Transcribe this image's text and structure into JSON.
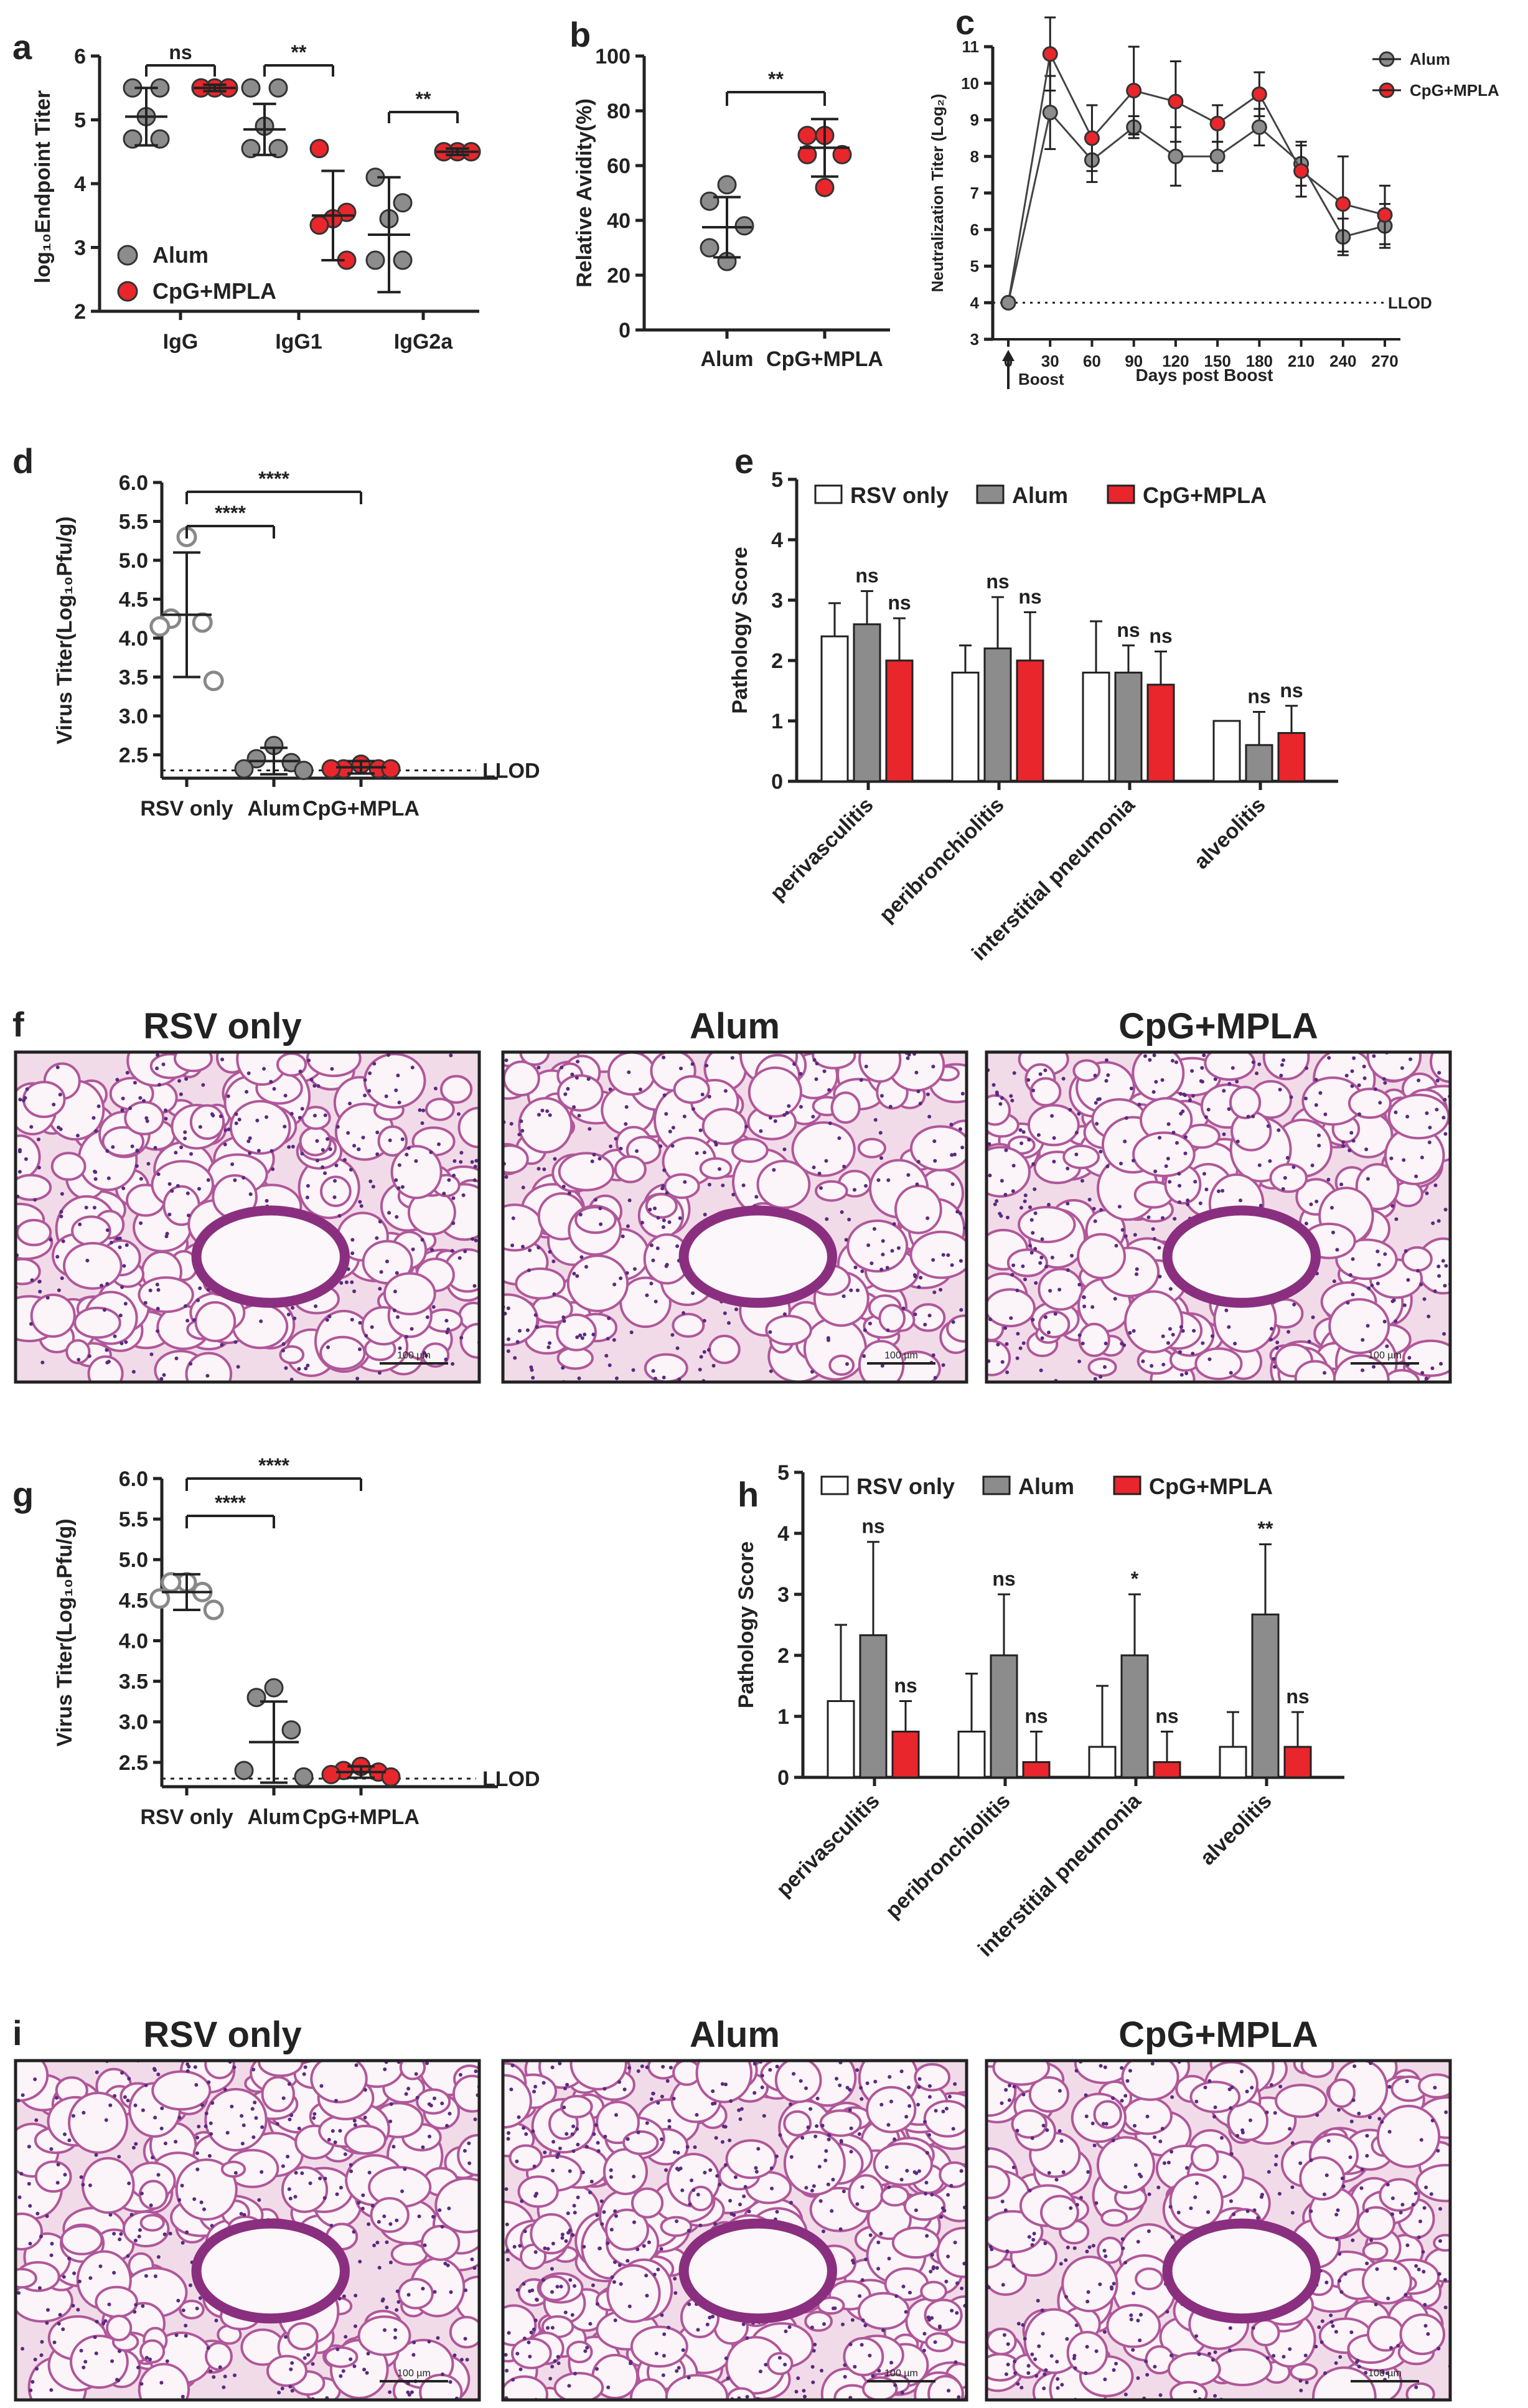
{
  "panel_letters": {
    "a": "a",
    "b": "b",
    "c": "c",
    "d": "d",
    "e": "e",
    "f": "f",
    "g": "g",
    "h": "h",
    "i": "i"
  },
  "colors": {
    "alum": "#8c8c8c",
    "cpg": "#e8262c",
    "rsv": "#ffffff",
    "black": "#222222"
  },
  "chart_data": [
    {
      "id": "a",
      "type": "scatter",
      "ylabel": "log10Endpoint Titer",
      "ylim": [
        2,
        6
      ],
      "yticks": [
        "2",
        "3",
        "4",
        "5",
        "6"
      ],
      "categories": [
        "IgG",
        "IgG1",
        "IgG2a"
      ],
      "series": [
        {
          "name": "Alum",
          "color": "#8c8c8c",
          "points": [
            [
              5.5,
              5.5,
              5.05,
              4.7,
              4.7
            ],
            [
              5.5,
              5.5,
              4.9,
              4.55,
              4.55
            ],
            [
              4.1,
              3.7,
              3.45,
              2.8,
              2.8
            ]
          ],
          "mean": [
            5.05,
            4.85,
            3.2
          ],
          "sd": [
            0.45,
            0.4,
            0.9
          ]
        },
        {
          "name": "CpG+MPLA",
          "color": "#e8262c",
          "points": [
            [
              5.5,
              5.5,
              5.5,
              5.5,
              5.5
            ],
            [
              4.55,
              3.55,
              3.45,
              3.35,
              2.8
            ],
            [
              4.5,
              4.5,
              4.5,
              4.5,
              4.5
            ]
          ],
          "mean": [
            5.5,
            3.5,
            4.5
          ],
          "sd": [
            0.05,
            0.7,
            0.05
          ]
        }
      ],
      "sig": [
        "ns",
        "**",
        "**"
      ],
      "legend": [
        "Alum",
        "CpG+MPLA"
      ]
    },
    {
      "id": "b",
      "type": "scatter",
      "ylabel": "Relative Avidity(%)",
      "ylim": [
        0,
        100
      ],
      "yticks": [
        "0",
        "20",
        "40",
        "60",
        "80",
        "100"
      ],
      "categories": [
        "Alum",
        "CpG+MPLA"
      ],
      "series": [
        {
          "name": "Alum",
          "color": "#8c8c8c",
          "points": [
            53,
            47,
            38,
            30,
            25
          ],
          "mean": 37.5,
          "sd": 11
        },
        {
          "name": "CpG+MPLA",
          "color": "#e8262c",
          "points": [
            71,
            71,
            64,
            64,
            52
          ],
          "mean": 66.5,
          "sd": 10.5
        }
      ],
      "sig": "**"
    },
    {
      "id": "c",
      "type": "line",
      "ylabel": "Neutralization Titer (Log2)",
      "xlabel": "Days post Boost",
      "x": [
        0,
        30,
        60,
        90,
        120,
        150,
        180,
        210,
        240,
        270
      ],
      "ylim": [
        3,
        11
      ],
      "yticks": [
        "3",
        "4",
        "5",
        "6",
        "7",
        "8",
        "9",
        "10",
        "11"
      ],
      "series": [
        {
          "name": "Alum",
          "color": "#8c8c8c",
          "values": [
            4,
            9.2,
            7.9,
            8.8,
            8.0,
            8.0,
            8.8,
            7.8,
            5.8,
            6.1
          ],
          "err": [
            0,
            1.0,
            0.6,
            0.3,
            0.8,
            0.4,
            0.5,
            0.6,
            0.5,
            0.6
          ]
        },
        {
          "name": "CpG+MPLA",
          "color": "#e8262c",
          "values": [
            4,
            10.8,
            8.5,
            9.8,
            9.5,
            8.9,
            9.7,
            7.6,
            6.7,
            6.4
          ],
          "err": [
            0,
            1.0,
            0.9,
            1.2,
            1.1,
            0.5,
            0.6,
            0.7,
            1.3,
            0.8
          ]
        }
      ],
      "lod_label": "LLOD",
      "lod": 4,
      "boost_label": "Boost",
      "legend": [
        "Alum",
        "CpG+MPLA"
      ]
    },
    {
      "id": "d",
      "type": "scatter",
      "ylabel": "Virus Titer(Log10Pfu/g)",
      "ylim": [
        2.2,
        6.0
      ],
      "yticks": [
        "2.5",
        "3.0",
        "3.5",
        "4.0",
        "4.5",
        "5.0",
        "5.5",
        "6.0"
      ],
      "categories": [
        "RSV only",
        "Alum",
        "CpG+MPLA"
      ],
      "series": [
        {
          "name": "RSV only",
          "color": "#ffffff",
          "points": [
            5.3,
            4.25,
            4.2,
            4.15,
            3.45
          ],
          "mean": 4.3,
          "sd": 0.8
        },
        {
          "name": "Alum",
          "color": "#8c8c8c",
          "points": [
            2.62,
            2.45,
            2.4,
            2.32,
            2.3
          ],
          "mean": 2.42,
          "sd": 0.17
        },
        {
          "name": "CpG+MPLA",
          "color": "#e8262c",
          "points": [
            2.38,
            2.32,
            2.32,
            2.32,
            2.32
          ],
          "mean": 2.34,
          "sd": 0.08
        }
      ],
      "lod": 2.3,
      "lod_label": "LLOD",
      "sig": [
        "****",
        "****"
      ]
    },
    {
      "id": "e",
      "type": "bar",
      "ylabel": "Pathology Score",
      "ylim": [
        0,
        5
      ],
      "yticks": [
        "0",
        "1",
        "2",
        "3",
        "4",
        "5"
      ],
      "categories": [
        "perivasculitis",
        "peribronchiolitis",
        "interstitial pneumonia",
        "alveolitis"
      ],
      "series": [
        {
          "name": "RSV only",
          "color": "#ffffff",
          "values": [
            2.4,
            1.8,
            1.8,
            1.0
          ],
          "err": [
            0.55,
            0.45,
            0.85,
            0.0
          ]
        },
        {
          "name": "Alum",
          "color": "#8c8c8c",
          "values": [
            2.6,
            2.2,
            1.8,
            0.6
          ],
          "err": [
            0.55,
            0.85,
            0.45,
            0.55
          ]
        },
        {
          "name": "CpG+MPLA",
          "color": "#e8262c",
          "values": [
            2.0,
            2.0,
            1.6,
            0.8
          ],
          "err": [
            0.7,
            0.8,
            0.55,
            0.45
          ]
        }
      ],
      "sig": [
        [
          "ns",
          "ns"
        ],
        [
          "ns",
          "ns"
        ],
        [
          "ns",
          "ns"
        ],
        [
          "ns",
          "ns"
        ]
      ],
      "legend": [
        "RSV only",
        "Alum",
        "CpG+MPLA"
      ]
    },
    {
      "id": "g",
      "type": "scatter",
      "ylabel": "Virus Titer(Log10Pfu/g)",
      "ylim": [
        2.2,
        6.0
      ],
      "yticks": [
        "2.5",
        "3.0",
        "3.5",
        "4.0",
        "4.5",
        "5.0",
        "5.5",
        "6.0"
      ],
      "categories": [
        "RSV only",
        "Alum",
        "CpG+MPLA"
      ],
      "series": [
        {
          "name": "RSV only",
          "color": "#ffffff",
          "points": [
            4.72,
            4.72,
            4.6,
            4.52,
            4.38
          ],
          "mean": 4.6,
          "sd": 0.22
        },
        {
          "name": "Alum",
          "color": "#8c8c8c",
          "points": [
            3.42,
            3.3,
            2.9,
            2.4,
            2.32
          ],
          "mean": 2.75,
          "sd": 0.5
        },
        {
          "name": "CpG+MPLA",
          "color": "#e8262c",
          "points": [
            2.45,
            2.4,
            2.38,
            2.35,
            2.32
          ],
          "mean": 2.38,
          "sd": 0.07
        }
      ],
      "lod": 2.3,
      "lod_label": "LLOD",
      "sig": [
        "****",
        "****"
      ]
    },
    {
      "id": "h",
      "type": "bar",
      "ylabel": "Pathology Score",
      "ylim": [
        0,
        5
      ],
      "yticks": [
        "0",
        "1",
        "2",
        "3",
        "4",
        "5"
      ],
      "categories": [
        "perivasculitis",
        "peribronchiolitis",
        "interstitial pneumonia",
        "alveolitis"
      ],
      "series": [
        {
          "name": "RSV only",
          "color": "#ffffff",
          "values": [
            1.25,
            0.75,
            0.5,
            0.5
          ],
          "err": [
            1.25,
            0.95,
            1.0,
            0.57
          ]
        },
        {
          "name": "Alum",
          "color": "#8c8c8c",
          "values": [
            2.33,
            2.0,
            2.0,
            2.67
          ],
          "err": [
            1.53,
            1.0,
            1.0,
            1.15
          ]
        },
        {
          "name": "CpG+MPLA",
          "color": "#e8262c",
          "values": [
            0.75,
            0.25,
            0.25,
            0.5
          ],
          "err": [
            0.5,
            0.5,
            0.5,
            0.57
          ]
        }
      ],
      "sig": [
        [
          "ns",
          "ns"
        ],
        [
          "ns",
          "ns"
        ],
        [
          "*",
          "ns"
        ],
        [
          "**",
          "ns"
        ]
      ],
      "legend": [
        "RSV only",
        "Alum",
        "CpG+MPLA"
      ]
    }
  ],
  "histology": {
    "f": {
      "titles": [
        "RSV only",
        "Alum",
        "CpG+MPLA"
      ],
      "scalebars": [
        "100 µm",
        "100 µm",
        "100 µm"
      ]
    },
    "i": {
      "titles": [
        "RSV only",
        "Alum",
        "CpG+MPLA"
      ],
      "scalebars": [
        "100 µm",
        "100 µm",
        "100 µm"
      ]
    }
  }
}
